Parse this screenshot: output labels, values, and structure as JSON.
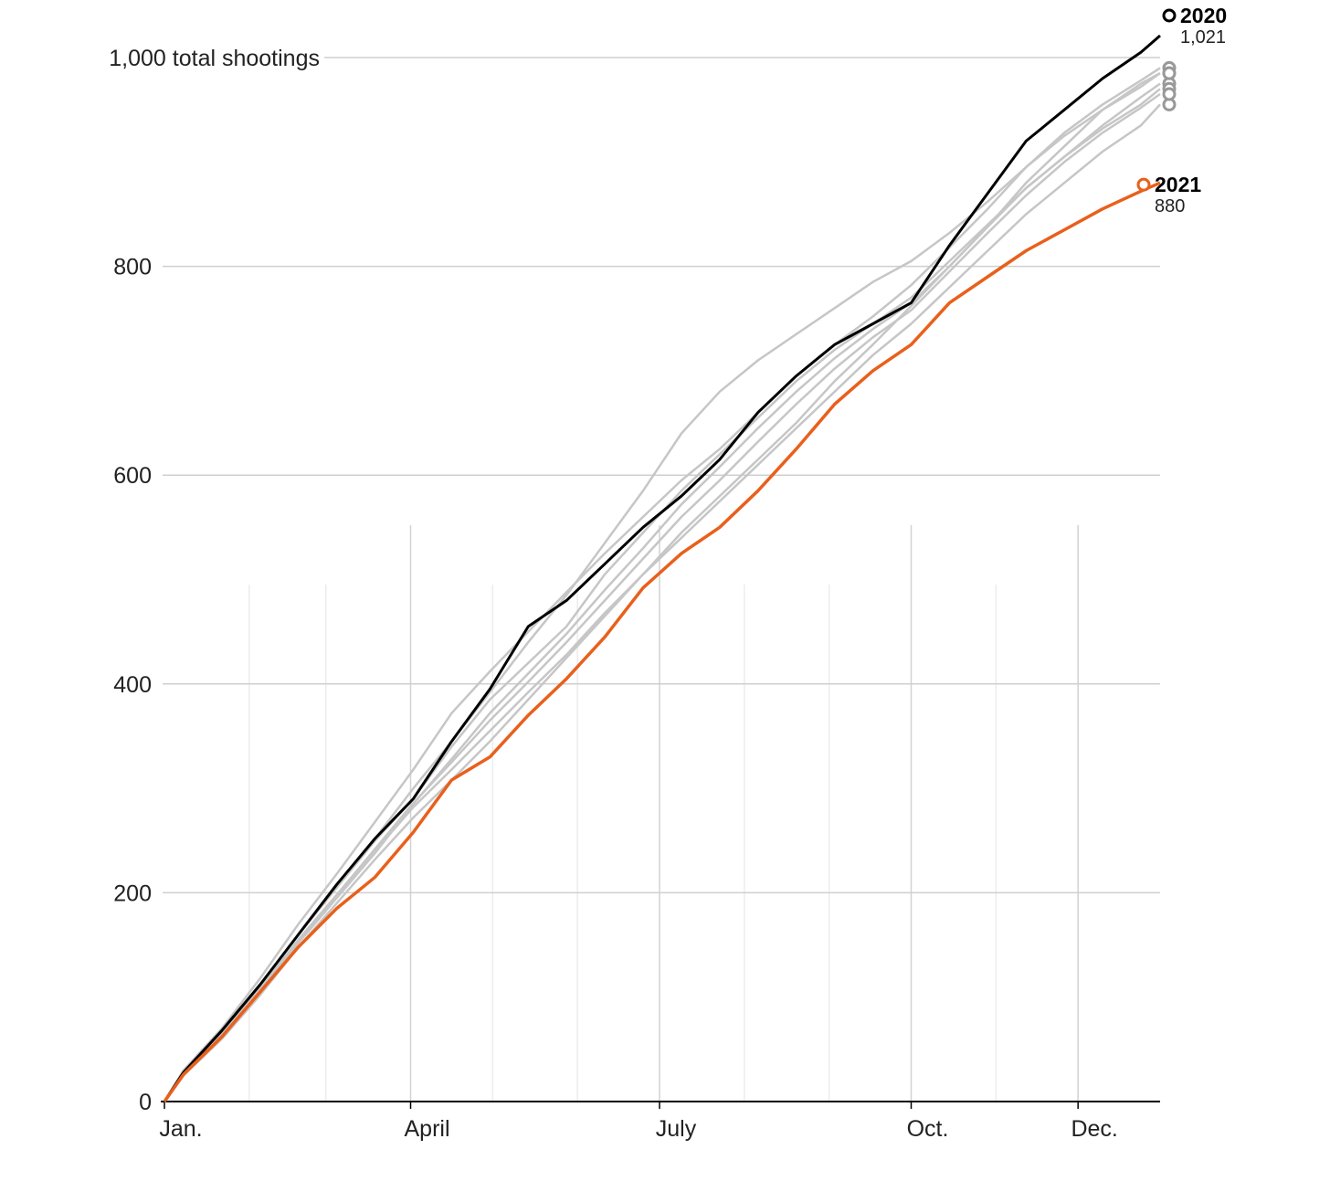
{
  "chart_data": {
    "type": "line",
    "title": "",
    "xlabel": "",
    "ylabel": "",
    "ylim": [
      0,
      1000
    ],
    "xlim": [
      "Jan. 1",
      "Dec. 31"
    ],
    "y_ticks": [
      {
        "value": 0,
        "label": "0"
      },
      {
        "value": 200,
        "label": "200"
      },
      {
        "value": 400,
        "label": "400"
      },
      {
        "value": 600,
        "label": "600"
      },
      {
        "value": 800,
        "label": "800"
      },
      {
        "value": 1000,
        "label": "1,000 total shootings"
      }
    ],
    "x_ticks": [
      {
        "date": "Jan. 1",
        "label": "Jan."
      },
      {
        "date": "Apr. 1",
        "label": "April"
      },
      {
        "date": "Jul. 1",
        "label": "July"
      },
      {
        "date": "Oct. 1",
        "label": "Oct."
      },
      {
        "date": "Dec. 1",
        "label": "Dec."
      }
    ],
    "month_gridlines": [
      "Feb. 1",
      "Mar. 1",
      "Apr. 1",
      "May 1",
      "Jun. 1",
      "Jul. 1",
      "Aug. 1",
      "Sep. 1",
      "Oct. 1",
      "Nov. 1",
      "Dec. 1"
    ],
    "x_dates": [
      "Jan. 1",
      "Jan. 8",
      "Jan. 22",
      "Feb. 5",
      "Feb. 19",
      "Mar. 5",
      "Mar. 19",
      "Apr. 2",
      "Apr. 16",
      "Apr. 30",
      "May 14",
      "May 28",
      "Jun. 11",
      "Jun. 25",
      "Jul. 9",
      "Jul. 23",
      "Aug. 6",
      "Aug. 20",
      "Sep. 3",
      "Sep. 17",
      "Oct. 1",
      "Oct. 15",
      "Oct. 29",
      "Nov. 12",
      "Nov. 26",
      "Dec. 10",
      "Dec. 24",
      "Dec. 31"
    ],
    "series": [
      {
        "highlight": false,
        "color": "#c6c6c6",
        "values": [
          0,
          28,
          65,
          110,
          160,
          205,
          250,
          290,
          340,
          385,
          420,
          455,
          505,
          545,
          585,
          620,
          655,
          690,
          720,
          745,
          770,
          805,
          840,
          875,
          905,
          935,
          962,
          975
        ]
      },
      {
        "highlight": false,
        "color": "#c6c6c6",
        "values": [
          0,
          25,
          60,
          102,
          148,
          190,
          232,
          272,
          308,
          345,
          385,
          425,
          465,
          505,
          540,
          575,
          610,
          645,
          680,
          715,
          745,
          780,
          815,
          850,
          880,
          910,
          935,
          955
        ]
      },
      {
        "highlight": false,
        "color": "#c6c6c6",
        "values": [
          0,
          30,
          70,
          118,
          170,
          218,
          268,
          318,
          372,
          412,
          450,
          488,
          525,
          560,
          595,
          625,
          660,
          695,
          725,
          752,
          782,
          818,
          855,
          895,
          928,
          955,
          978,
          990
        ]
      },
      {
        "highlight": false,
        "color": "#c6c6c6",
        "values": [
          0,
          27,
          63,
          108,
          155,
          198,
          240,
          282,
          318,
          355,
          392,
          428,
          468,
          505,
          545,
          580,
          615,
          650,
          690,
          725,
          762,
          800,
          838,
          880,
          915,
          950,
          975,
          985
        ]
      },
      {
        "highlight": false,
        "color": "#c6c6c6",
        "values": [
          0,
          30,
          68,
          112,
          160,
          205,
          252,
          300,
          345,
          392,
          440,
          485,
          535,
          585,
          640,
          680,
          710,
          735,
          760,
          785,
          805,
          832,
          862,
          895,
          925,
          950,
          972,
          985
        ]
      },
      {
        "highlight": false,
        "color": "#c6c6c6",
        "values": [
          0,
          26,
          62,
          105,
          152,
          195,
          238,
          285,
          328,
          372,
          410,
          448,
          490,
          530,
          572,
          608,
          645,
          680,
          712,
          740,
          765,
          800,
          838,
          875,
          905,
          932,
          955,
          970
        ]
      },
      {
        "highlight": false,
        "color": "#c6c6c6",
        "values": [
          0,
          27,
          64,
          108,
          155,
          198,
          242,
          286,
          325,
          365,
          402,
          440,
          480,
          520,
          560,
          595,
          632,
          668,
          702,
          732,
          758,
          795,
          832,
          868,
          900,
          928,
          952,
          965
        ]
      },
      {
        "name": "2020",
        "highlight": true,
        "color": "#000000",
        "end_label": "1,021",
        "values": [
          0,
          28,
          68,
          112,
          160,
          208,
          252,
          290,
          345,
          395,
          455,
          480,
          515,
          550,
          580,
          615,
          660,
          695,
          725,
          745,
          765,
          820,
          870,
          920,
          950,
          980,
          1005,
          1021
        ]
      },
      {
        "name": "2021",
        "highlight": true,
        "color": "#e8601c",
        "end_label": "880",
        "values": [
          0,
          26,
          62,
          105,
          148,
          185,
          215,
          258,
          308,
          330,
          370,
          405,
          445,
          492,
          525,
          550,
          585,
          625,
          668,
          700,
          725,
          765,
          790,
          815,
          835,
          855,
          872,
          880
        ]
      }
    ]
  }
}
